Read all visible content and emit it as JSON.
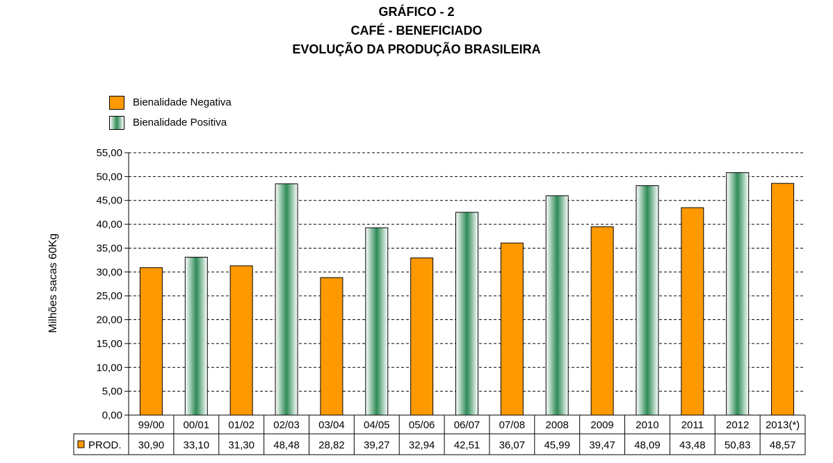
{
  "chart_data": {
    "type": "bar",
    "title": "GRÁFICO - 2",
    "subtitle": [
      "CAFÉ - BENEFICIADO",
      "EVOLUÇÃO DA PRODUÇÃO BRASILEIRA"
    ],
    "ylabel": "Milhões sacas 60Kg",
    "xlabel": "",
    "ylim": [
      0,
      55
    ],
    "yticks": [
      "0,00",
      "5,00",
      "10,00",
      "15,00",
      "20,00",
      "25,00",
      "30,00",
      "35,00",
      "40,00",
      "45,00",
      "50,00",
      "55,00"
    ],
    "grid": true,
    "legend": [
      {
        "label": "Bienalidade Negativa",
        "color": "#FF9900"
      },
      {
        "label": "Bienalidade Positiva",
        "color": "#2E8B57"
      }
    ],
    "legend_position": "top-left",
    "categories": [
      "99/00",
      "00/01",
      "01/02",
      "02/03",
      "03/04",
      "04/05",
      "05/06",
      "06/07",
      "07/08",
      "2008",
      "2009",
      "2010",
      "2011",
      "2012",
      "2013(*)"
    ],
    "values": [
      30.9,
      33.1,
      31.3,
      48.48,
      28.82,
      39.27,
      32.94,
      42.51,
      36.07,
      45.99,
      39.47,
      48.09,
      43.48,
      50.83,
      48.57
    ],
    "bienality": [
      "negativa",
      "positiva",
      "negativa",
      "positiva",
      "negativa",
      "positiva",
      "negativa",
      "positiva",
      "negativa",
      "positiva",
      "negativa",
      "positiva",
      "negativa",
      "positiva",
      "negativa"
    ],
    "table": {
      "row_label": "PROD.",
      "values": [
        "30,90",
        "33,10",
        "31,30",
        "48,48",
        "28,82",
        "39,27",
        "32,94",
        "42,51",
        "36,07",
        "45,99",
        "39,47",
        "48,09",
        "43,48",
        "50,83",
        "48,57"
      ]
    }
  }
}
